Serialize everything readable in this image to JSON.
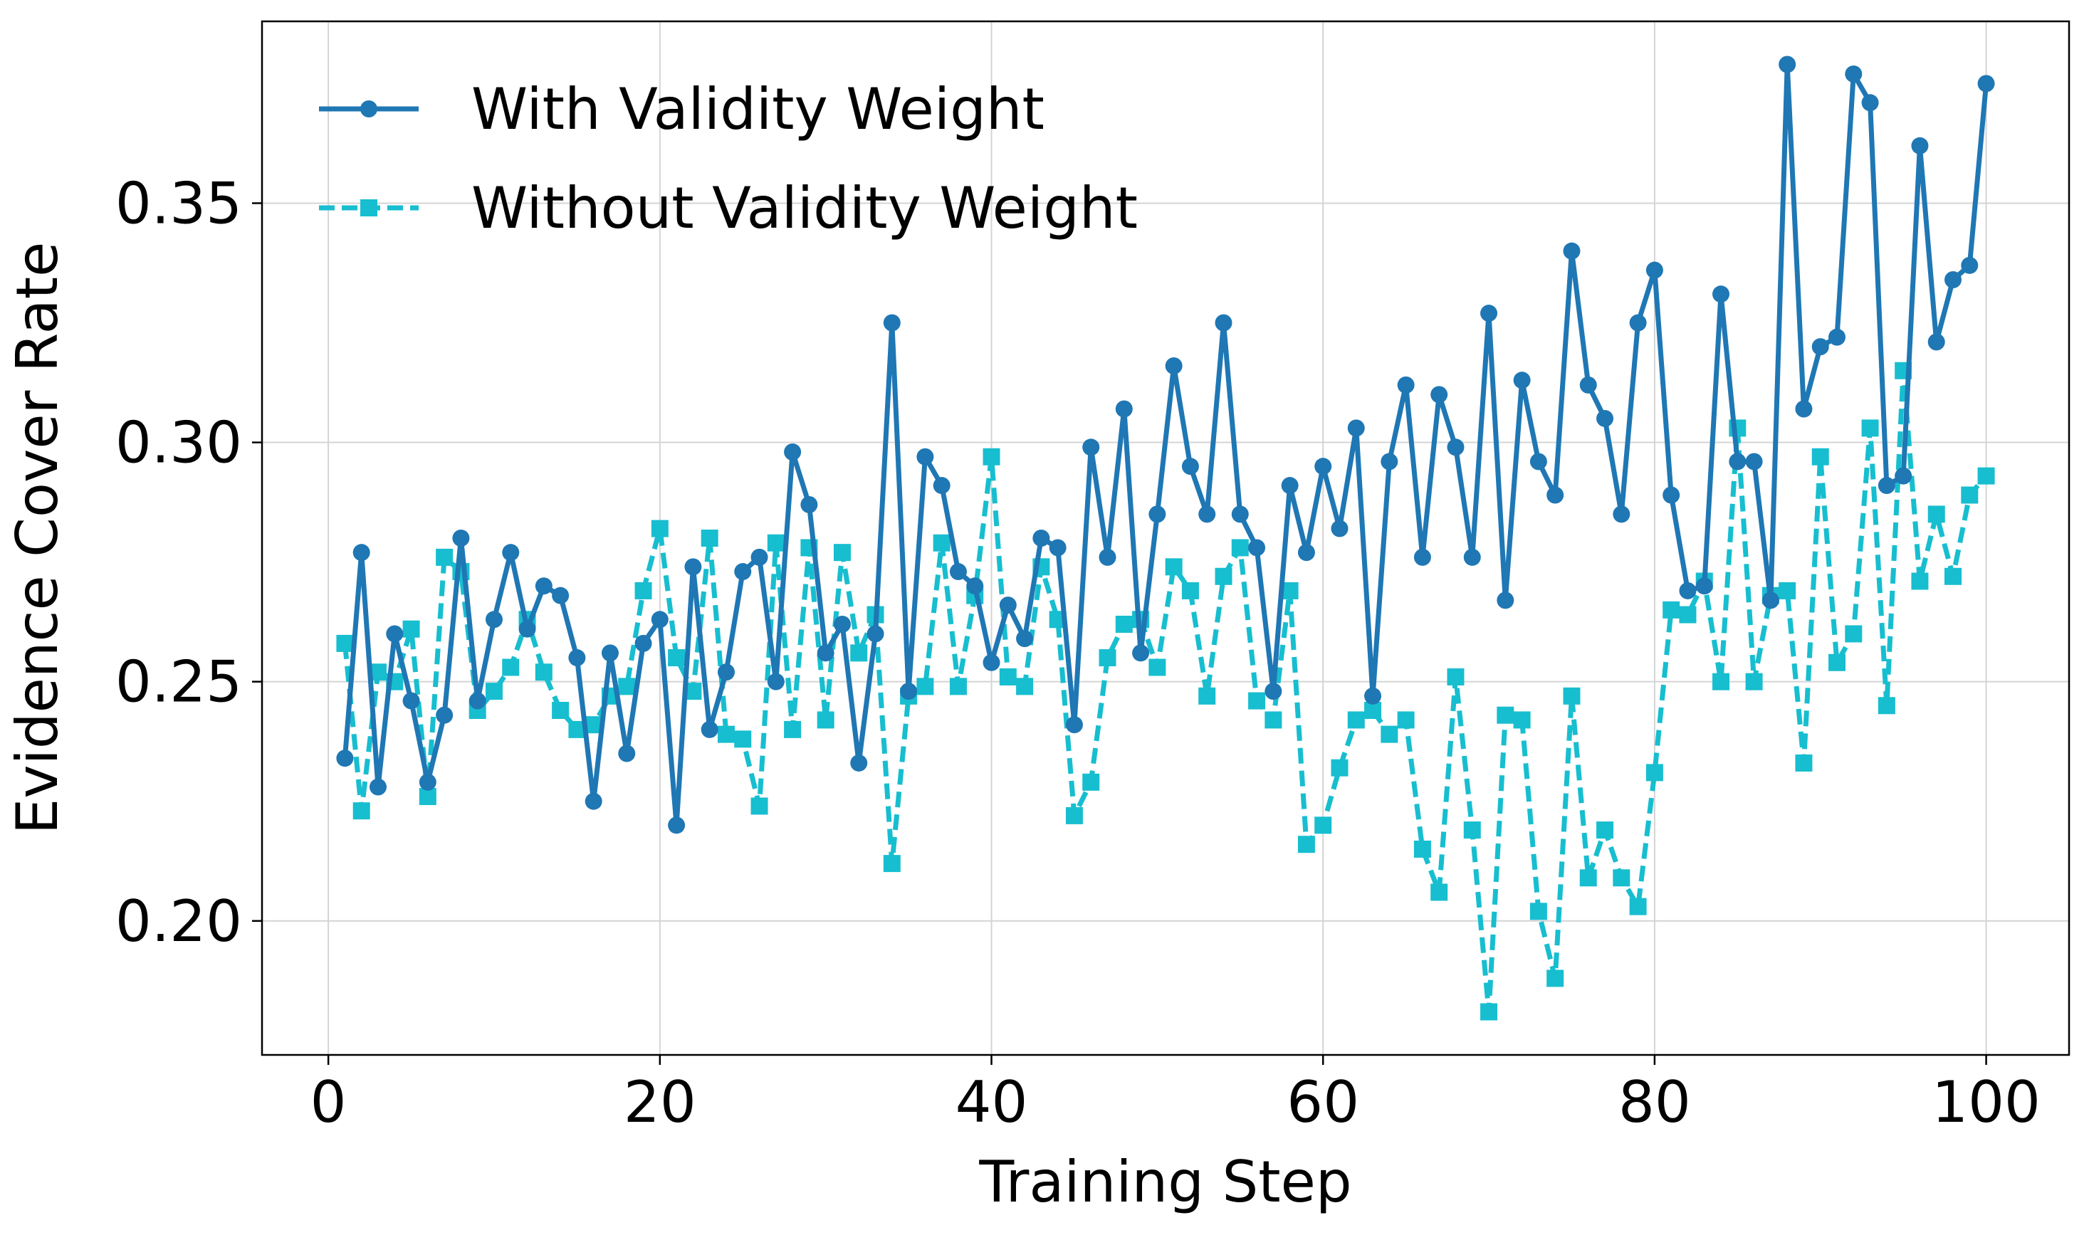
{
  "chart_data": {
    "type": "line",
    "title": "",
    "xlabel": "Training Step",
    "ylabel": "Evidence Cover Rate",
    "xlim": [
      -4,
      105
    ],
    "ylim": [
      0.172,
      0.388
    ],
    "xticks": [
      0,
      20,
      40,
      60,
      80,
      100
    ],
    "xtick_labels": [
      "0",
      "20",
      "40",
      "60",
      "80",
      "100"
    ],
    "yticks": [
      0.2,
      0.25,
      0.3,
      0.35
    ],
    "ytick_labels": [
      "0.20",
      "0.25",
      "0.30",
      "0.35"
    ],
    "grid": true,
    "legend_position": "top-left",
    "x": [
      1,
      2,
      3,
      4,
      5,
      6,
      7,
      8,
      9,
      10,
      11,
      12,
      13,
      14,
      15,
      16,
      17,
      18,
      19,
      20,
      21,
      22,
      23,
      24,
      25,
      26,
      27,
      28,
      29,
      30,
      31,
      32,
      33,
      34,
      35,
      36,
      37,
      38,
      39,
      40,
      41,
      42,
      43,
      44,
      45,
      46,
      47,
      48,
      49,
      50,
      51,
      52,
      53,
      54,
      55,
      56,
      57,
      58,
      59,
      60,
      61,
      62,
      63,
      64,
      65,
      66,
      67,
      68,
      69,
      70,
      71,
      72,
      73,
      74,
      75,
      76,
      77,
      78,
      79,
      80,
      81,
      82,
      83,
      84,
      85,
      86,
      87,
      88,
      89,
      90,
      91,
      92,
      93,
      94,
      95,
      96,
      97,
      98,
      99,
      100
    ],
    "series": [
      {
        "name": "With Validity Weight",
        "color": "#1f77b4",
        "linestyle": "solid",
        "marker": "circle",
        "values": [
          0.234,
          0.277,
          0.228,
          0.26,
          0.246,
          0.229,
          0.243,
          0.28,
          0.246,
          0.263,
          0.277,
          0.261,
          0.27,
          0.268,
          0.255,
          0.225,
          0.256,
          0.235,
          0.258,
          0.263,
          0.22,
          0.274,
          0.24,
          0.252,
          0.273,
          0.276,
          0.25,
          0.298,
          0.287,
          0.256,
          0.262,
          0.233,
          0.26,
          0.325,
          0.248,
          0.297,
          0.291,
          0.273,
          0.27,
          0.254,
          0.266,
          0.259,
          0.28,
          0.278,
          0.241,
          0.299,
          0.276,
          0.307,
          0.256,
          0.285,
          0.316,
          0.295,
          0.285,
          0.325,
          0.285,
          0.278,
          0.248,
          0.291,
          0.277,
          0.295,
          0.282,
          0.303,
          0.247,
          0.296,
          0.312,
          0.276,
          0.31,
          0.299,
          0.276,
          0.327,
          0.267,
          0.313,
          0.296,
          0.289,
          0.34,
          0.312,
          0.305,
          0.285,
          0.325,
          0.336,
          0.289,
          0.269,
          0.27,
          0.331,
          0.296,
          0.296,
          0.267,
          0.379,
          0.307,
          0.32,
          0.322,
          0.377,
          0.371,
          0.291,
          0.293,
          0.362,
          0.321,
          0.334,
          0.337,
          0.375
        ]
      },
      {
        "name": "Without Validity Weight",
        "color": "#17becf",
        "linestyle": "dashed",
        "marker": "square",
        "values": [
          0.258,
          0.223,
          0.252,
          0.25,
          0.261,
          0.226,
          0.276,
          0.273,
          0.244,
          0.248,
          0.253,
          0.263,
          0.252,
          0.244,
          0.24,
          0.241,
          0.247,
          0.249,
          0.269,
          0.282,
          0.255,
          0.248,
          0.28,
          0.239,
          0.238,
          0.224,
          0.279,
          0.24,
          0.278,
          0.242,
          0.277,
          0.256,
          0.264,
          0.212,
          0.247,
          0.249,
          0.279,
          0.249,
          0.268,
          0.297,
          0.251,
          0.249,
          0.274,
          0.263,
          0.222,
          0.229,
          0.255,
          0.262,
          0.263,
          0.253,
          0.274,
          0.269,
          0.247,
          0.272,
          0.278,
          0.246,
          0.242,
          0.269,
          0.216,
          0.22,
          0.232,
          0.242,
          0.244,
          0.239,
          0.242,
          0.215,
          0.206,
          0.251,
          0.219,
          0.181,
          0.243,
          0.242,
          0.202,
          0.188,
          0.247,
          0.209,
          0.219,
          0.209,
          0.203,
          0.231,
          0.265,
          0.264,
          0.271,
          0.25,
          0.303,
          0.25,
          0.268,
          0.269,
          0.233,
          0.297,
          0.254,
          0.26,
          0.303,
          0.245,
          0.315,
          0.271,
          0.285,
          0.272,
          0.289,
          0.293
        ]
      }
    ]
  }
}
